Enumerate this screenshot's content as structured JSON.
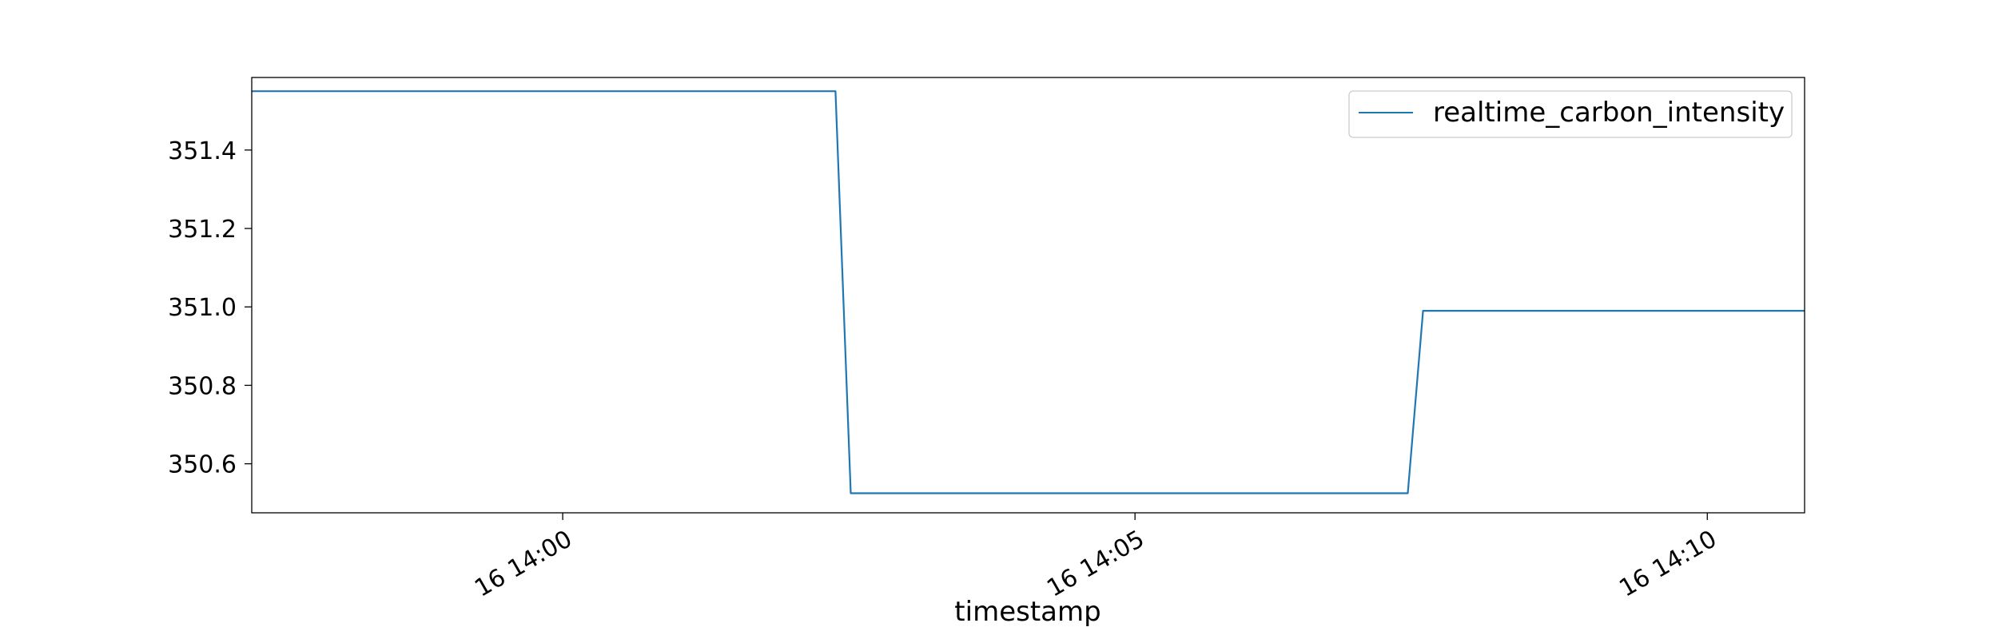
{
  "chart_data": {
    "type": "line",
    "title": "",
    "xlabel": "timestamp",
    "ylabel": "",
    "x_tick_labels": [
      "16 14:00",
      "16 14:05",
      "16 14:10"
    ],
    "y_tick_labels": [
      "350.6",
      "350.8",
      "351.0",
      "351.2",
      "351.4"
    ],
    "xlim": [
      "2023-xx-16 13:57:17",
      "2023-xx-16 14:10:51"
    ],
    "ylim": [
      350.475,
      351.585
    ],
    "legend_position": "upper right",
    "grid": false,
    "series": [
      {
        "name": "realtime_carbon_intensity",
        "color": "#1f77b4",
        "x": [
          "13:57:17",
          "14:02:23",
          "14:02:31",
          "14:07:23",
          "14:07:31",
          "14:10:51"
        ],
        "y": [
          351.55,
          351.55,
          350.525,
          350.525,
          350.99,
          350.99
        ]
      }
    ]
  }
}
